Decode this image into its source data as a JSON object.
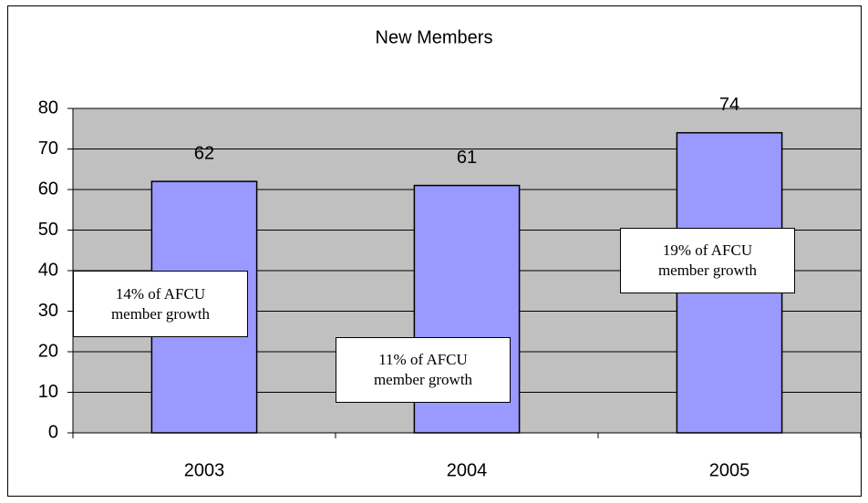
{
  "chart_data": {
    "type": "bar",
    "title": "New Members",
    "categories": [
      "2003",
      "2004",
      "2005"
    ],
    "values": [
      62,
      61,
      74
    ],
    "color": "#9999ff",
    "plot_background": "#c0c0c0",
    "ylim": [
      0,
      80
    ],
    "yticks": [
      0,
      10,
      20,
      30,
      40,
      50,
      60,
      70,
      80
    ],
    "grid": true,
    "annotations": [
      "14% of AFCU member growth",
      "11% of AFCU member growth",
      "19% of AFCU member growth"
    ]
  }
}
